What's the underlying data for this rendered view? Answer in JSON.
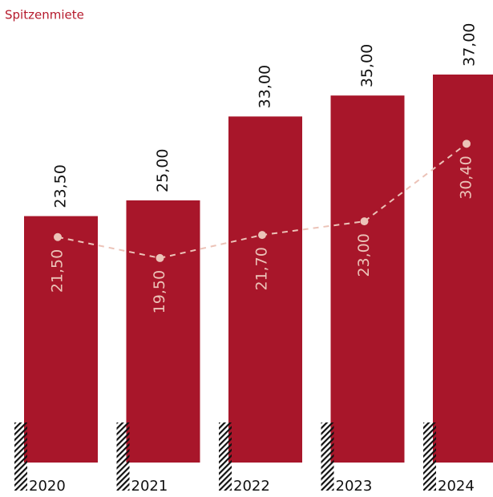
{
  "chart_data": {
    "type": "bar",
    "categories": [
      "2020",
      "2021",
      "2022",
      "2023",
      "2024"
    ],
    "series": [
      {
        "name": "Spitzenmiete",
        "color": "#a8162a",
        "values": [
          23.5,
          25,
          33,
          35,
          37
        ],
        "value_labels": [
          "23,50",
          "25,00",
          "33,00",
          "35,00",
          "37,00"
        ]
      },
      {
        "type": "line",
        "color": "#ecc3b8",
        "values": [
          21.5,
          19.5,
          21.7,
          23,
          30.4
        ],
        "value_labels": [
          "21,50",
          "19,50",
          "21,70",
          "23,00",
          "30,40"
        ]
      }
    ]
  }
}
